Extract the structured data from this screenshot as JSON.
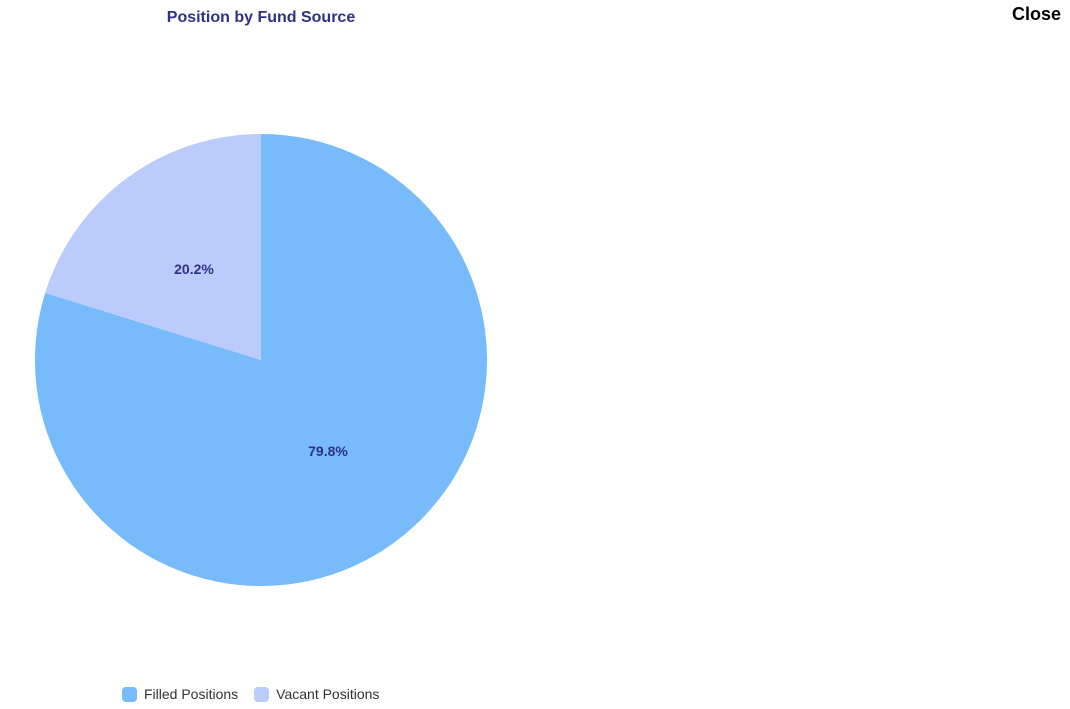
{
  "close_label": "Close",
  "chart_data": {
    "type": "pie",
    "title": "Position by Fund Source",
    "slices": [
      {
        "label": "Filled Positions",
        "value": 79.8,
        "data_label": "79.8%",
        "color": "#77bbfb"
      },
      {
        "label": "Vacant Positions",
        "value": 20.2,
        "data_label": "20.2%",
        "color": "#bbcbfb"
      }
    ],
    "start_angle": "top, clockwise",
    "legend_position": "bottom",
    "data_label_color": "#2f3185"
  }
}
